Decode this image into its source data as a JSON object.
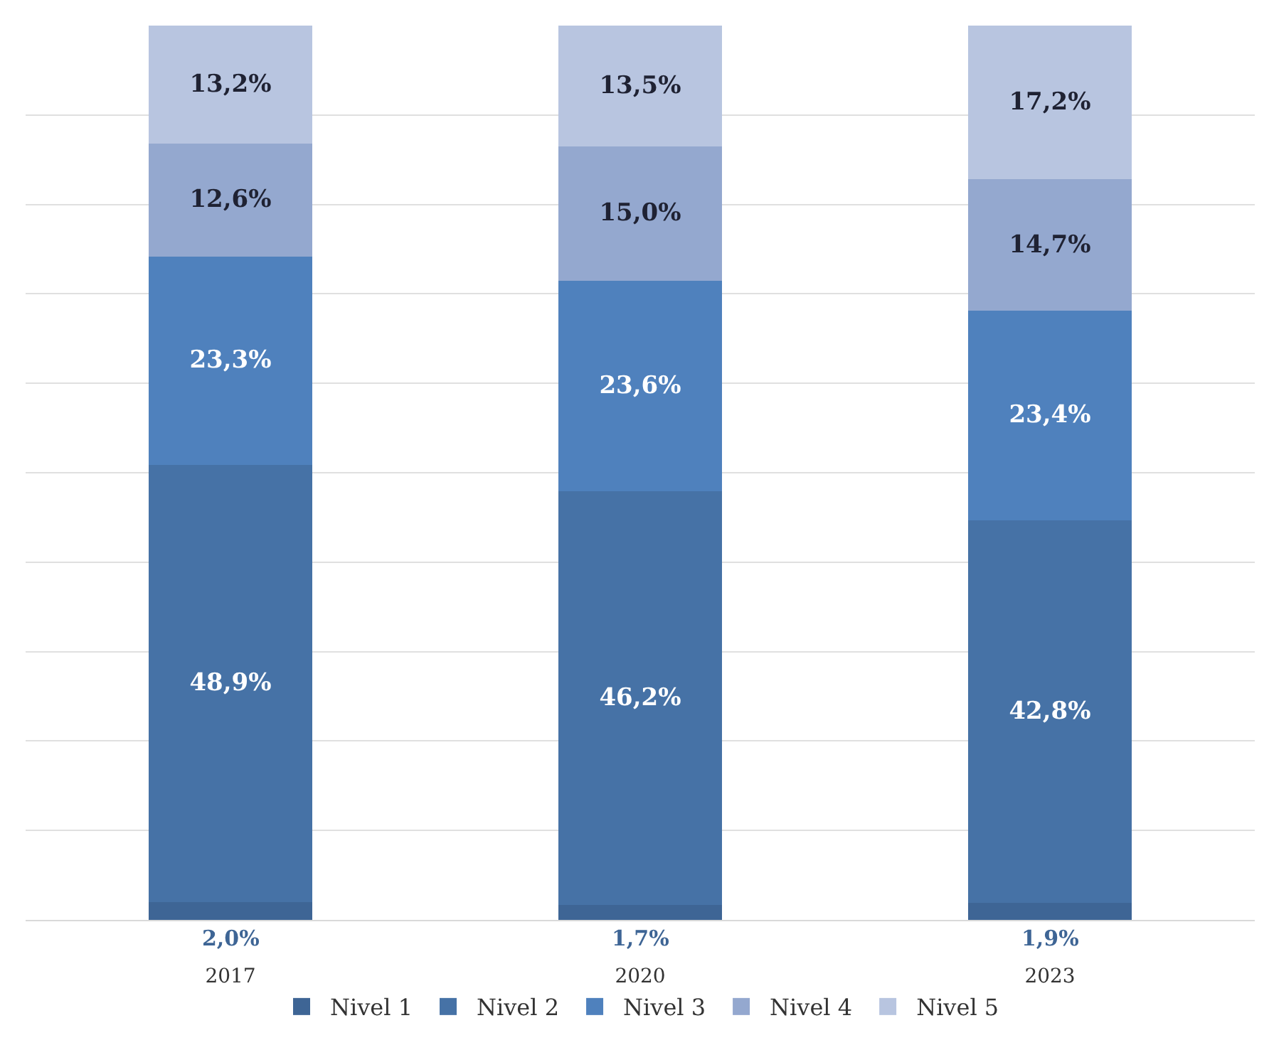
{
  "chart_data": {
    "type": "bar",
    "stacked": true,
    "categories": [
      "2017",
      "2020",
      "2023"
    ],
    "series": [
      {
        "name": "Nivel 1",
        "color": "#3e6595",
        "values": [
          2.0,
          1.7,
          1.9
        ],
        "value_labels": [
          "2,0%",
          "1,7%",
          "1,9%"
        ]
      },
      {
        "name": "Nivel 2",
        "color": "#4672a6",
        "values": [
          48.9,
          46.2,
          42.8
        ],
        "value_labels": [
          "48,9%",
          "46,2%",
          "42,8%"
        ]
      },
      {
        "name": "Nivel 3",
        "color": "#4f81bd",
        "values": [
          23.3,
          23.6,
          23.4
        ],
        "value_labels": [
          "23,3%",
          "23,6%",
          "23,4%"
        ]
      },
      {
        "name": "Nivel 4",
        "color": "#94a8cf",
        "values": [
          12.6,
          15.0,
          14.7
        ],
        "value_labels": [
          "12,6%",
          "15,0%",
          "14,7%"
        ]
      },
      {
        "name": "Nivel 5",
        "color": "#b8c5e0",
        "values": [
          13.2,
          13.5,
          17.2
        ],
        "value_labels": [
          "13,2%",
          "13,5%",
          "17,2%"
        ]
      }
    ],
    "ylim": [
      0,
      100
    ],
    "grid": "y",
    "legend": "bottom",
    "tick_labels": "x"
  }
}
